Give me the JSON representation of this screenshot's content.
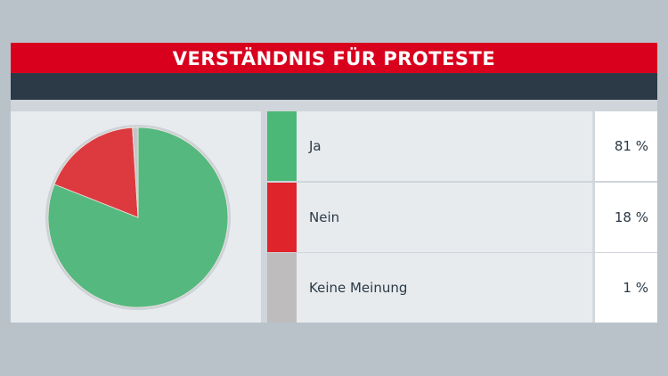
{
  "chart_data": {
    "type": "pie",
    "title": "VERSTÄNDNIS FÜR PROTESTE",
    "slices": [
      {
        "label": "Ja",
        "value": 81,
        "display": "81 %",
        "color": "#55b97f",
        "swatch": "#4cb877"
      },
      {
        "label": "Nein",
        "value": 18,
        "display": "18 %",
        "color": "#dd3a40",
        "swatch": "#e0242c"
      },
      {
        "label": "Keine Meinung",
        "value": 1,
        "display": "1 %",
        "color": "#c3c5c8",
        "swatch": "#bebcbd"
      }
    ]
  }
}
